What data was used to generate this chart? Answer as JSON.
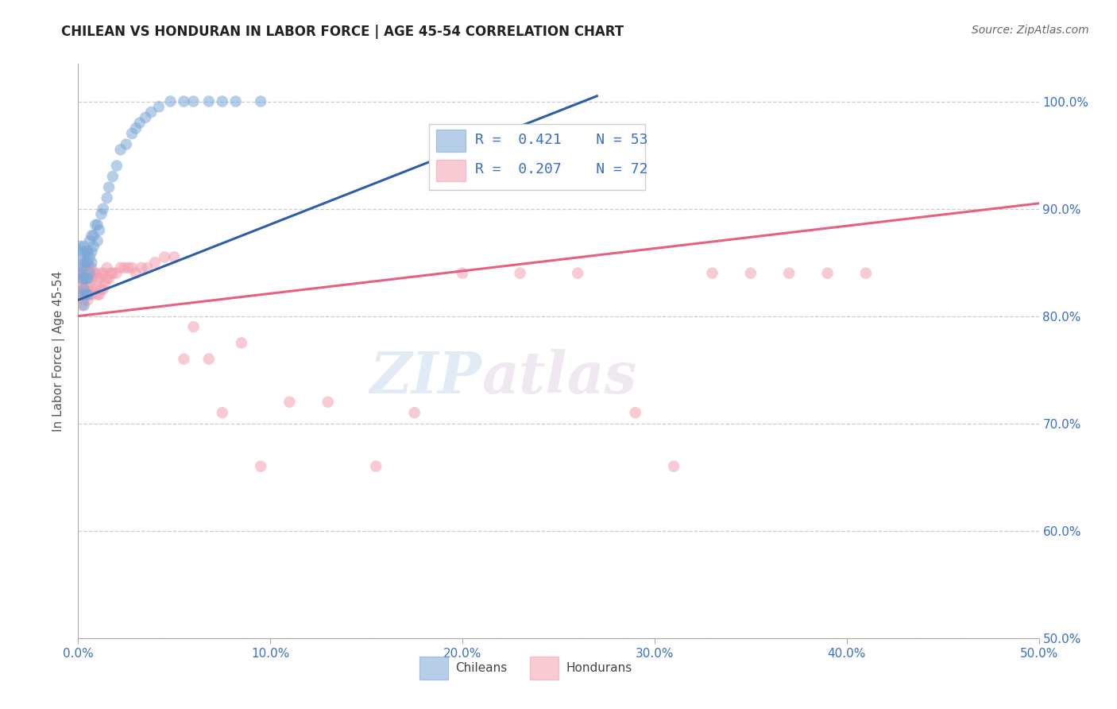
{
  "title": "CHILEAN VS HONDURAN IN LABOR FORCE | AGE 45-54 CORRELATION CHART",
  "source_text": "Source: ZipAtlas.com",
  "ylabel": "In Labor Force | Age 45-54",
  "xlim": [
    0.0,
    0.5
  ],
  "ylim": [
    0.5,
    1.035
  ],
  "xtick_labels": [
    "0.0%",
    "10.0%",
    "20.0%",
    "30.0%",
    "40.0%",
    "50.0%"
  ],
  "xtick_vals": [
    0.0,
    0.1,
    0.2,
    0.3,
    0.4,
    0.5
  ],
  "ytick_vals": [
    0.5,
    0.6,
    0.7,
    0.8,
    0.9,
    1.0
  ],
  "right_ytick_labels": [
    "100.0%",
    "90.0%",
    "80.0%",
    "70.0%",
    "60.0%",
    "50.0%"
  ],
  "right_ytick_vals": [
    1.0,
    0.9,
    0.8,
    0.7,
    0.6,
    0.5
  ],
  "legend_blue_r": "R =  0.421",
  "legend_blue_n": "N = 53",
  "legend_pink_r": "R =  0.207",
  "legend_pink_n": "N = 72",
  "blue_color": "#7aa6d6",
  "pink_color": "#f4a0b0",
  "blue_line_color": "#2c5fa8",
  "pink_line_color": "#e86080",
  "watermark_zip": "ZIP",
  "watermark_atlas": "atlas",
  "blue_scatter_x": [
    0.001,
    0.001,
    0.001,
    0.002,
    0.002,
    0.002,
    0.002,
    0.003,
    0.003,
    0.003,
    0.003,
    0.003,
    0.004,
    0.004,
    0.004,
    0.004,
    0.005,
    0.005,
    0.005,
    0.005,
    0.006,
    0.006,
    0.006,
    0.007,
    0.007,
    0.007,
    0.008,
    0.008,
    0.009,
    0.01,
    0.01,
    0.011,
    0.012,
    0.013,
    0.015,
    0.016,
    0.018,
    0.02,
    0.022,
    0.025,
    0.028,
    0.03,
    0.032,
    0.035,
    0.038,
    0.042,
    0.048,
    0.055,
    0.06,
    0.068,
    0.075,
    0.082,
    0.095
  ],
  "blue_scatter_y": [
    0.84,
    0.855,
    0.865,
    0.82,
    0.835,
    0.845,
    0.86,
    0.81,
    0.825,
    0.835,
    0.85,
    0.865,
    0.82,
    0.835,
    0.85,
    0.86,
    0.82,
    0.835,
    0.85,
    0.86,
    0.84,
    0.855,
    0.87,
    0.85,
    0.86,
    0.875,
    0.865,
    0.875,
    0.885,
    0.87,
    0.885,
    0.88,
    0.895,
    0.9,
    0.91,
    0.92,
    0.93,
    0.94,
    0.955,
    0.96,
    0.97,
    0.975,
    0.98,
    0.985,
    0.99,
    0.995,
    1.0,
    1.0,
    1.0,
    1.0,
    1.0,
    1.0,
    1.0
  ],
  "pink_scatter_x": [
    0.001,
    0.001,
    0.001,
    0.002,
    0.002,
    0.002,
    0.002,
    0.003,
    0.003,
    0.003,
    0.003,
    0.004,
    0.004,
    0.004,
    0.005,
    0.005,
    0.005,
    0.006,
    0.006,
    0.006,
    0.007,
    0.007,
    0.007,
    0.008,
    0.008,
    0.009,
    0.009,
    0.01,
    0.01,
    0.011,
    0.011,
    0.012,
    0.012,
    0.013,
    0.013,
    0.014,
    0.015,
    0.015,
    0.016,
    0.017,
    0.018,
    0.02,
    0.022,
    0.024,
    0.026,
    0.028,
    0.03,
    0.033,
    0.036,
    0.04,
    0.045,
    0.05,
    0.055,
    0.06,
    0.068,
    0.075,
    0.085,
    0.095,
    0.11,
    0.13,
    0.155,
    0.175,
    0.2,
    0.23,
    0.26,
    0.29,
    0.31,
    0.33,
    0.35,
    0.37,
    0.39,
    0.41
  ],
  "pink_scatter_y": [
    0.82,
    0.83,
    0.84,
    0.81,
    0.82,
    0.83,
    0.84,
    0.815,
    0.825,
    0.835,
    0.845,
    0.82,
    0.835,
    0.845,
    0.815,
    0.825,
    0.84,
    0.82,
    0.83,
    0.845,
    0.82,
    0.835,
    0.845,
    0.825,
    0.84,
    0.825,
    0.84,
    0.82,
    0.835,
    0.82,
    0.835,
    0.825,
    0.84,
    0.825,
    0.84,
    0.83,
    0.835,
    0.845,
    0.835,
    0.84,
    0.84,
    0.84,
    0.845,
    0.845,
    0.845,
    0.845,
    0.84,
    0.845,
    0.845,
    0.85,
    0.855,
    0.855,
    0.76,
    0.79,
    0.76,
    0.71,
    0.775,
    0.66,
    0.72,
    0.72,
    0.66,
    0.71,
    0.84,
    0.84,
    0.84,
    0.71,
    0.66,
    0.84,
    0.84,
    0.84,
    0.84,
    0.84
  ],
  "blue_line_x0": 0.0,
  "blue_line_y0": 0.815,
  "blue_line_x1": 0.27,
  "blue_line_y1": 1.005,
  "pink_line_x0": 0.0,
  "pink_line_y0": 0.8,
  "pink_line_x1": 0.5,
  "pink_line_y1": 0.905
}
